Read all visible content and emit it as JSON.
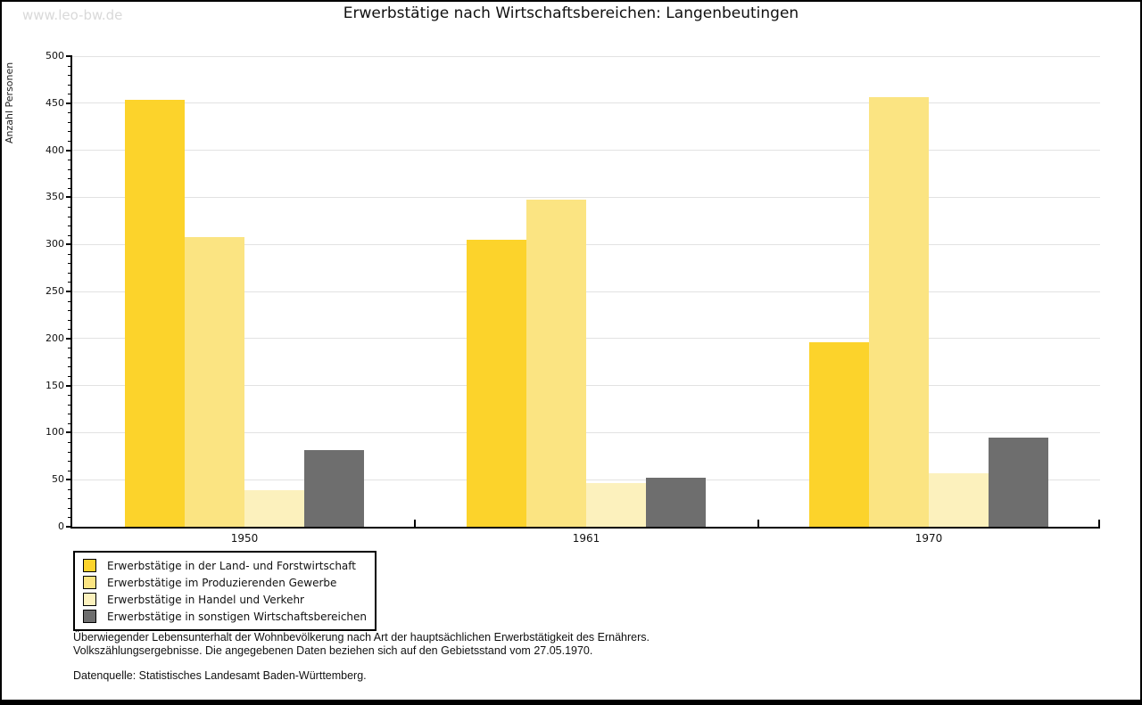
{
  "watermark": "www.leo-bw.de",
  "title": "Erwerbstätige nach Wirtschaftsbereichen: Langenbeutingen",
  "chart_data": {
    "type": "bar",
    "title": "Erwerbstätige nach Wirtschaftsbereichen: Langenbeutingen",
    "xlabel": "",
    "ylabel": "Anzahl Personen",
    "categories": [
      "1950",
      "1961",
      "1970"
    ],
    "series": [
      {
        "name": "Erwerbstätige in der Land- und Forstwirtschaft",
        "color": "#FCD32B",
        "values": [
          454,
          305,
          196
        ]
      },
      {
        "name": "Erwerbstätige im Produzierenden Gewerbe",
        "color": "#FBE482",
        "values": [
          308,
          348,
          456
        ]
      },
      {
        "name": "Erwerbstätige in Handel und Verkehr",
        "color": "#FCF1BD",
        "values": [
          39,
          46,
          57
        ]
      },
      {
        "name": "Erwerbstätige in sonstigen Wirtschaftsbereichen",
        "color": "#6E6E6E",
        "values": [
          81,
          52,
          95
        ]
      }
    ],
    "ylim": [
      0,
      500
    ],
    "ytick_step": 50,
    "minor_tick_step": 10,
    "grid": true,
    "legend_position": "bottom-left"
  },
  "footnotes": {
    "line1": "Überwiegender Lebensunterhalt der Wohnbevölkerung nach Art der hauptsächlichen Erwerbstätigkeit des Ernährers.",
    "line2": "Volkszählungsergebnisse. Die angegebenen Daten beziehen sich auf den Gebietsstand vom 27.05.1970.",
    "source": "Datenquelle: Statistisches Landesamt Baden-Württemberg."
  },
  "colors": {
    "grid": "#E2E2E2",
    "axis": "#000000",
    "watermark": "#D9D9D9"
  }
}
